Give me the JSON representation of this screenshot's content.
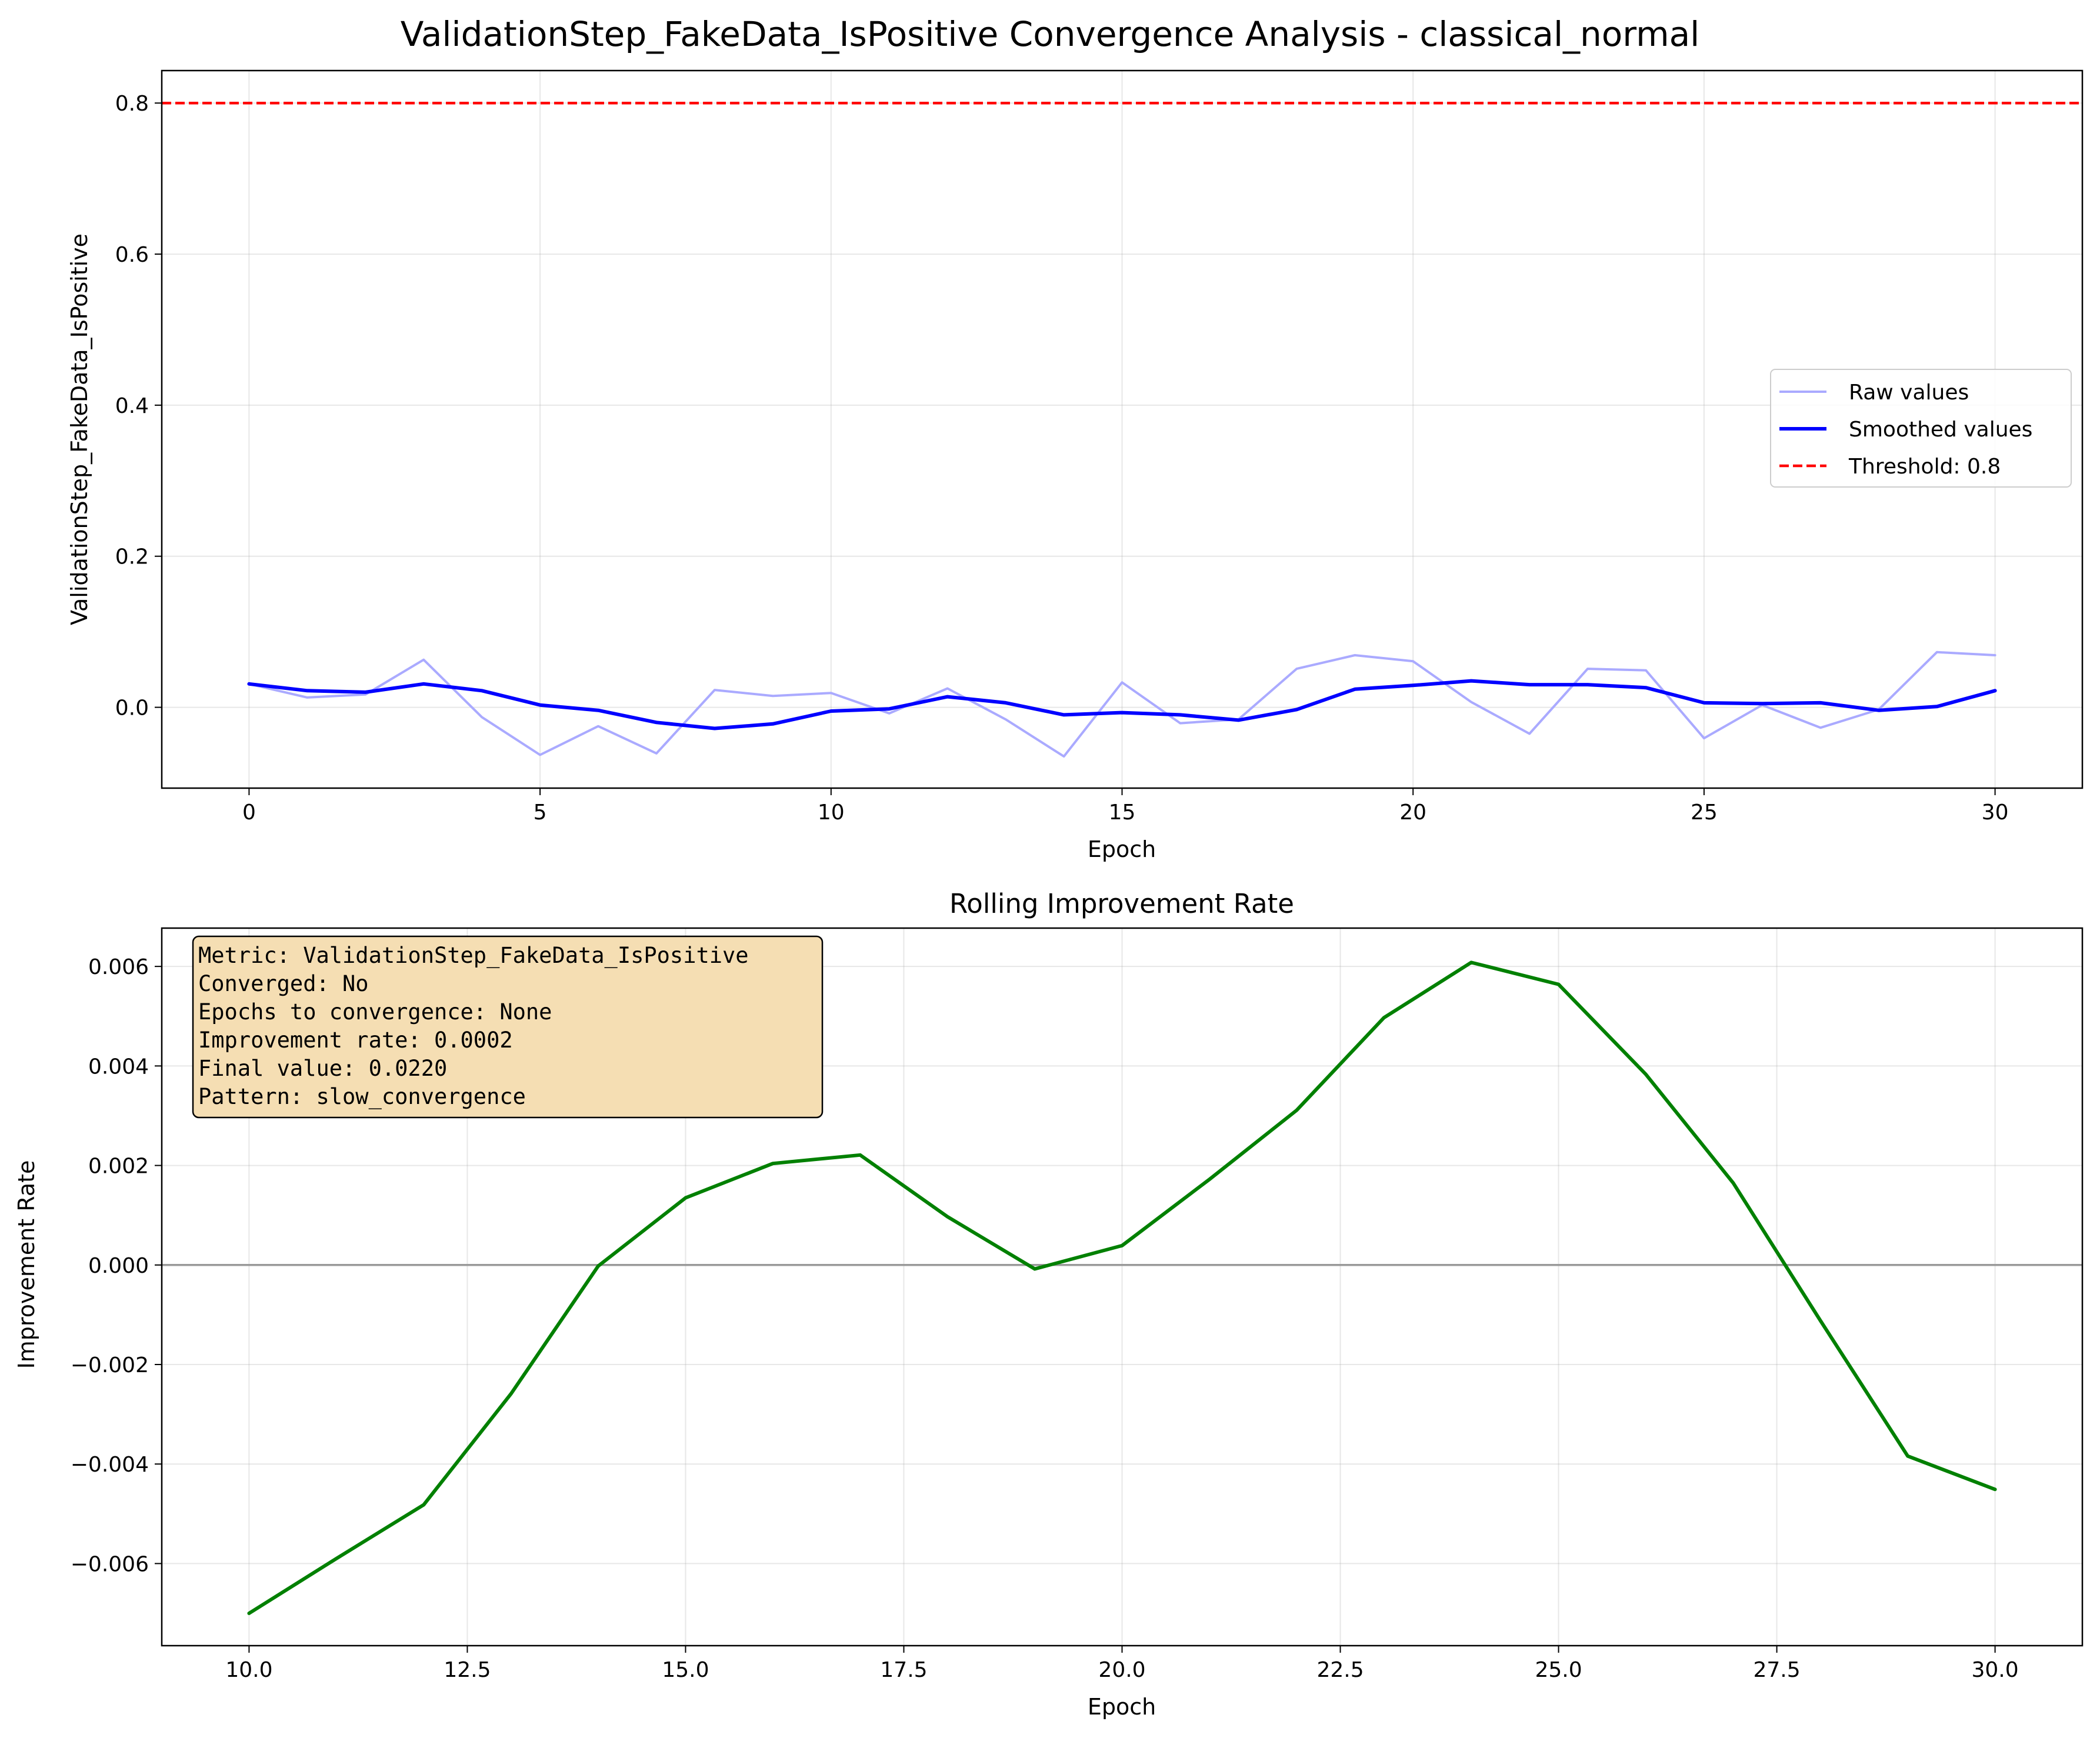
{
  "figure": {
    "suptitle": "ValidationStep_FakeData_IsPositive Convergence Analysis - classical_normal"
  },
  "chart_data": [
    {
      "type": "line",
      "title": "",
      "xlabel": "Epoch",
      "ylabel": "ValidationStep_FakeData_IsPositive",
      "xlim": [
        -1.5,
        31.5
      ],
      "ylim": [
        -0.107,
        0.843
      ],
      "xticks": [
        0,
        5,
        10,
        15,
        20,
        25,
        30
      ],
      "xtick_labels": [
        "0",
        "5",
        "10",
        "15",
        "20",
        "25",
        "30"
      ],
      "yticks": [
        0.0,
        0.2,
        0.4,
        0.6,
        0.8
      ],
      "ytick_labels": [
        "0.0",
        "0.2",
        "0.4",
        "0.6",
        "0.8"
      ],
      "grid": true,
      "legend": "center-right",
      "x": [
        0,
        1,
        2,
        3,
        4,
        5,
        6,
        7,
        8,
        9,
        10,
        11,
        12,
        13,
        14,
        15,
        16,
        17,
        18,
        19,
        20,
        21,
        22,
        23,
        24,
        25,
        26,
        27,
        28,
        29,
        30
      ],
      "series": [
        {
          "name": "Raw values",
          "color": "#aaaaff",
          "values": [
            0.031,
            0.013,
            0.017,
            0.063,
            -0.013,
            -0.063,
            -0.025,
            -0.061,
            0.023,
            0.015,
            0.019,
            -0.008,
            0.025,
            -0.016,
            -0.065,
            0.033,
            -0.021,
            -0.016,
            0.051,
            0.069,
            0.061,
            0.007,
            -0.035,
            0.051,
            0.049,
            -0.041,
            0.003,
            -0.027,
            -0.003,
            0.073,
            0.069
          ]
        },
        {
          "name": "Smoothed values",
          "color": "#0000ff",
          "values": [
            0.031,
            0.022,
            0.02,
            0.031,
            0.022,
            0.003,
            -0.004,
            -0.02,
            -0.028,
            -0.022,
            -0.005,
            -0.002,
            0.014,
            0.006,
            -0.01,
            -0.007,
            -0.01,
            -0.017,
            -0.003,
            0.024,
            0.029,
            0.035,
            0.03,
            0.03,
            0.026,
            0.006,
            0.005,
            0.006,
            -0.004,
            0.001,
            0.022
          ]
        },
        {
          "name": "Threshold: 0.8",
          "color": "#ff0000",
          "style": "dashed",
          "constant": 0.8
        }
      ]
    },
    {
      "type": "line",
      "title": "Rolling Improvement Rate",
      "xlabel": "Epoch",
      "ylabel": "Improvement Rate",
      "xlim": [
        9.0,
        31.0
      ],
      "ylim": [
        -0.00765,
        0.00677
      ],
      "xticks": [
        10.0,
        12.5,
        15.0,
        17.5,
        20.0,
        22.5,
        25.0,
        27.5,
        30.0
      ],
      "xtick_labels": [
        "10.0",
        "12.5",
        "15.0",
        "17.5",
        "20.0",
        "22.5",
        "25.0",
        "27.5",
        "30.0"
      ],
      "yticks": [
        -0.006,
        -0.004,
        -0.002,
        0.0,
        0.002,
        0.004,
        0.006
      ],
      "ytick_labels": [
        "−0.006",
        "−0.004",
        "−0.002",
        "0.000",
        "0.002",
        "0.004",
        "0.006"
      ],
      "grid": true,
      "zero_line_color": "#999999",
      "x": [
        10,
        11,
        12,
        13,
        14,
        15,
        16,
        17,
        18,
        19,
        20,
        21,
        22,
        23,
        24,
        25,
        26,
        27,
        28,
        29,
        30
      ],
      "series": [
        {
          "name": "",
          "color": "#008000",
          "values": [
            -0.007,
            -0.0059,
            -0.00482,
            -0.00259,
            -2e-05,
            0.00135,
            0.00204,
            0.00221,
            0.00097,
            -8e-05,
            0.00039,
            0.00172,
            0.00311,
            0.00497,
            0.00608,
            0.00564,
            0.00383,
            0.00165,
            -0.00112,
            -0.00384,
            -0.00451
          ]
        }
      ]
    }
  ],
  "info_box": {
    "lines": [
      "Metric: ValidationStep_FakeData_IsPositive",
      "Converged: No",
      "Epochs to convergence: None",
      "Improvement rate: 0.0002",
      "Final value: 0.0220",
      "Pattern: slow_convergence"
    ],
    "background": "#f5deb3"
  }
}
